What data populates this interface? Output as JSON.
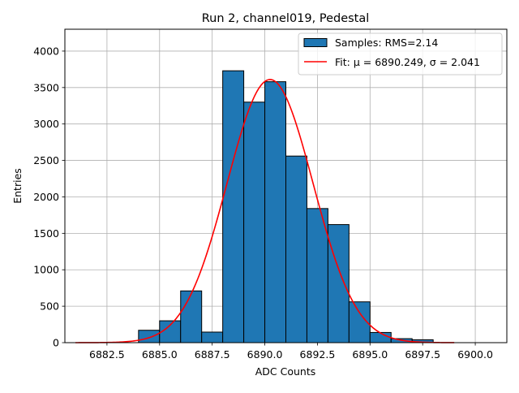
{
  "chart_data": {
    "type": "bar",
    "title": "Run 2, channel019, Pedestal",
    "xlabel": "ADC Counts",
    "ylabel": "Entries",
    "xlim": [
      6880.5,
      6901.5
    ],
    "ylim": [
      0,
      4300
    ],
    "xticks": [
      6882.5,
      6885.0,
      6887.5,
      6890.0,
      6892.5,
      6895.0,
      6897.5,
      6900.0
    ],
    "xtick_labels": [
      "6882.5",
      "6885.0",
      "6887.5",
      "6890.0",
      "6892.5",
      "6895.0",
      "6897.5",
      "6900.0"
    ],
    "yticks": [
      0,
      500,
      1000,
      1500,
      2000,
      2500,
      3000,
      3500,
      4000
    ],
    "ytick_labels": [
      "0",
      "500",
      "1000",
      "1500",
      "2000",
      "2500",
      "3000",
      "3500",
      "4000"
    ],
    "grid": true,
    "legend_position": "top-right",
    "bar_color": "#1f77b4",
    "fit_color": "#ff0000",
    "bins": [
      {
        "left": 6884.0,
        "right": 6885.0,
        "value": 170
      },
      {
        "left": 6885.0,
        "right": 6886.0,
        "value": 300
      },
      {
        "left": 6886.0,
        "right": 6887.0,
        "value": 710
      },
      {
        "left": 6887.0,
        "right": 6888.0,
        "value": 145
      },
      {
        "left": 6888.0,
        "right": 6889.0,
        "value": 3730
      },
      {
        "left": 6889.0,
        "right": 6890.0,
        "value": 3300
      },
      {
        "left": 6890.0,
        "right": 6891.0,
        "value": 3580
      },
      {
        "left": 6891.0,
        "right": 6892.0,
        "value": 2560
      },
      {
        "left": 6892.0,
        "right": 6893.0,
        "value": 1840
      },
      {
        "left": 6893.0,
        "right": 6894.0,
        "value": 1620
      },
      {
        "left": 6894.0,
        "right": 6895.0,
        "value": 560
      },
      {
        "left": 6895.0,
        "right": 6896.0,
        "value": 140
      },
      {
        "left": 6896.0,
        "right": 6897.0,
        "value": 55
      },
      {
        "left": 6897.0,
        "right": 6898.0,
        "value": 40
      }
    ],
    "series": [
      {
        "name": "Samples: RMS=2.14",
        "kind": "histogram"
      },
      {
        "name": "Fit: μ = 6890.249, σ = 2.041",
        "kind": "gaussian",
        "mu": 6890.249,
        "sigma": 2.041,
        "amplitude": 3610,
        "x_range": [
          6881.0,
          6899.0
        ]
      }
    ]
  }
}
